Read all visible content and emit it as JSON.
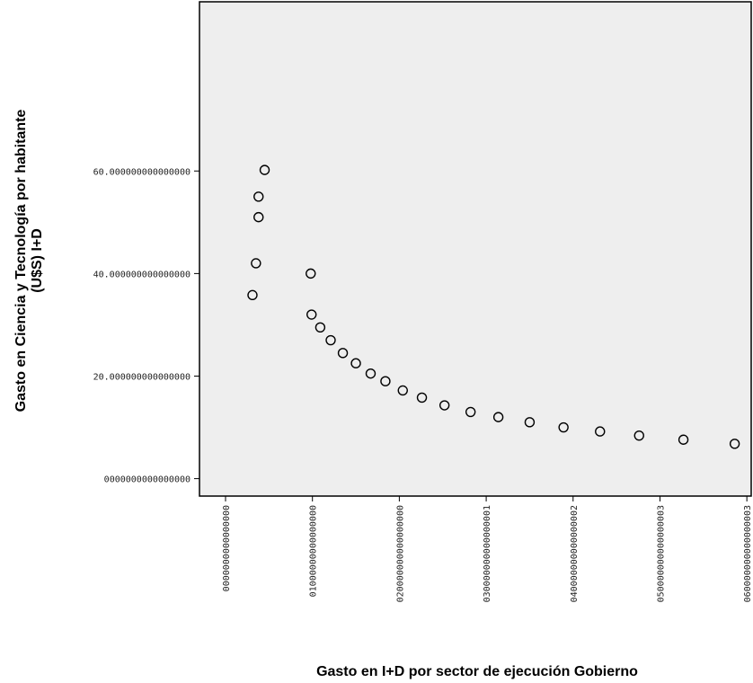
{
  "chart_data": {
    "type": "scatter",
    "title": "",
    "xlabel": "Gasto en I+D por sector de ejecución Gobierno",
    "ylabel_line1": "Gasto en Ciencia y Tecnología por habitante",
    "ylabel_line2": "(U$S) I+D",
    "xlim": [
      -0.003,
      0.0605
    ],
    "ylim": [
      -3.4,
      93
    ],
    "grid": false,
    "legend": "none",
    "x_ticks": [
      {
        "value": 0.0,
        "label": "0000000000000000"
      },
      {
        "value": 0.01,
        "label": "01000000000000000"
      },
      {
        "value": 0.02,
        "label": "020000000000000000"
      },
      {
        "value": 0.03,
        "label": "030000000000000001"
      },
      {
        "value": 0.04,
        "label": "040000000000000002"
      },
      {
        "value": 0.05,
        "label": "050000000000000003"
      },
      {
        "value": 0.06,
        "label": "060000000000000003"
      }
    ],
    "y_ticks": [
      {
        "value": 0,
        "label": "0000000000000000"
      },
      {
        "value": 20,
        "label": "20.000000000000000"
      },
      {
        "value": 40,
        "label": "40.000000000000000"
      },
      {
        "value": 60,
        "label": "60.000000000000000"
      }
    ],
    "points": [
      {
        "x": 0.0045,
        "y": 60.2
      },
      {
        "x": 0.0038,
        "y": 55.0
      },
      {
        "x": 0.0038,
        "y": 51.0
      },
      {
        "x": 0.0035,
        "y": 42.0
      },
      {
        "x": 0.0031,
        "y": 35.8
      },
      {
        "x": 0.0098,
        "y": 40.0
      },
      {
        "x": 0.0099,
        "y": 32.0
      },
      {
        "x": 0.0109,
        "y": 29.5
      },
      {
        "x": 0.0121,
        "y": 27.0
      },
      {
        "x": 0.0135,
        "y": 24.5
      },
      {
        "x": 0.015,
        "y": 22.5
      },
      {
        "x": 0.0167,
        "y": 20.5
      },
      {
        "x": 0.0184,
        "y": 19.0
      },
      {
        "x": 0.0204,
        "y": 17.2
      },
      {
        "x": 0.0226,
        "y": 15.8
      },
      {
        "x": 0.0252,
        "y": 14.3
      },
      {
        "x": 0.0282,
        "y": 13.0
      },
      {
        "x": 0.0314,
        "y": 12.0
      },
      {
        "x": 0.035,
        "y": 11.0
      },
      {
        "x": 0.0389,
        "y": 10.0
      },
      {
        "x": 0.0431,
        "y": 9.2
      },
      {
        "x": 0.0476,
        "y": 8.4
      },
      {
        "x": 0.0527,
        "y": 7.6
      },
      {
        "x": 0.0586,
        "y": 6.8
      }
    ],
    "colors": {
      "plot_background": "#eeeeee",
      "marker": "#000000",
      "axis": "#000000"
    }
  }
}
